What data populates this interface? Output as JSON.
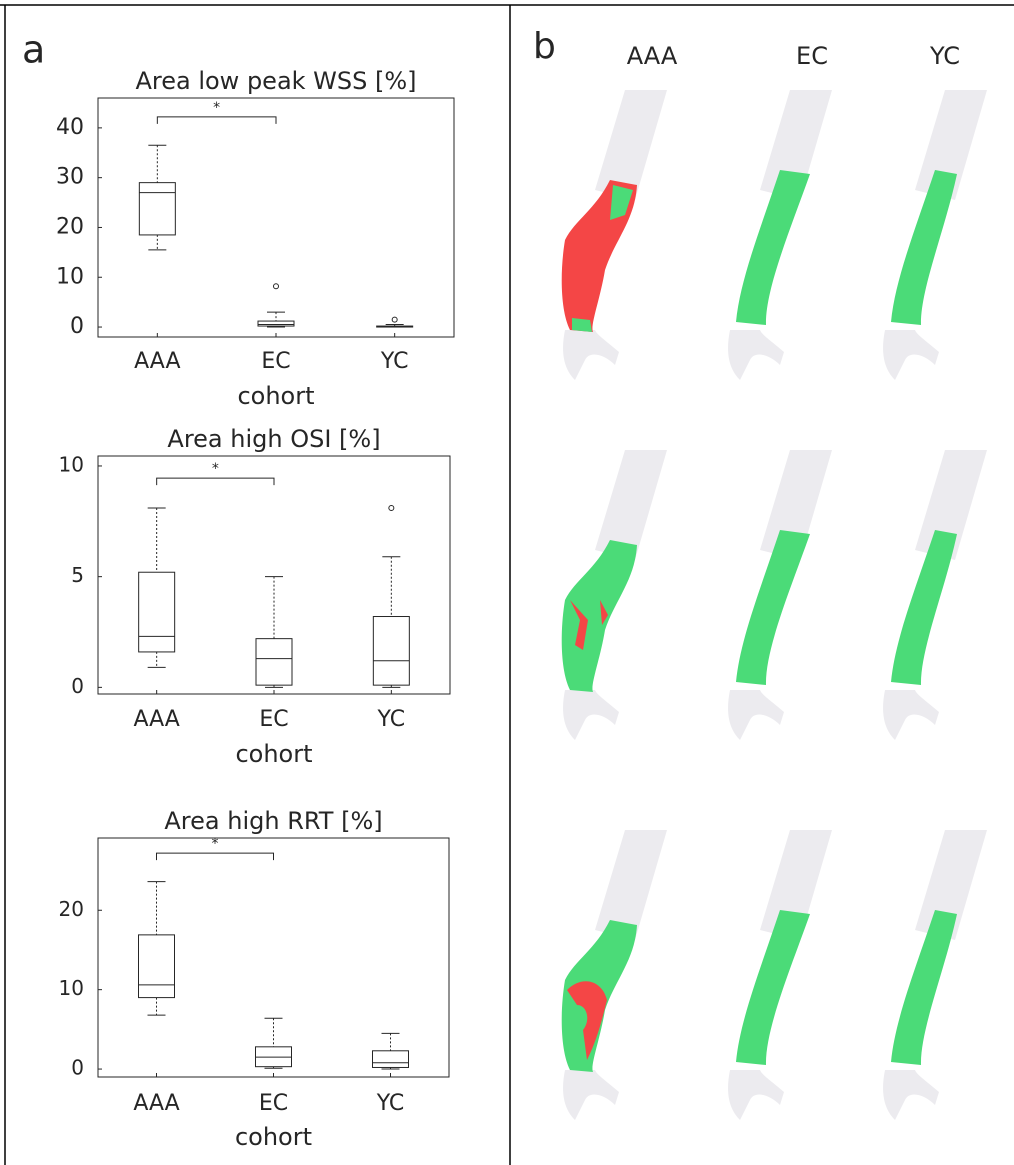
{
  "panel_labels": {
    "a": "a",
    "b": "b"
  },
  "image_columns": [
    "AAA",
    "EC",
    "YC"
  ],
  "chart_data": [
    {
      "type": "box",
      "title": "Area low peak WSS [%]",
      "x_label": "cohort",
      "categories": [
        "AAA",
        "EC",
        "YC"
      ],
      "boxes": [
        {
          "min": 15.5,
          "q1": 18.5,
          "median": 27,
          "q3": 29,
          "max": 36.5,
          "outliers": []
        },
        {
          "min": 0,
          "q1": 0.2,
          "median": 0.5,
          "q3": 1.2,
          "max": 3,
          "outliers": [
            8.2
          ]
        },
        {
          "min": 0,
          "q1": 0,
          "median": 0.1,
          "q3": 0.2,
          "max": 0.5,
          "outliers": [
            1.5
          ]
        }
      ],
      "ylim": [
        -2,
        46
      ],
      "yticks": [
        0,
        10,
        20,
        30,
        40
      ],
      "significance": {
        "between": [
          "AAA",
          "EC"
        ],
        "y": 42.2,
        "label": "*"
      }
    },
    {
      "type": "box",
      "title": "Area high OSI [%]",
      "x_label": "cohort",
      "categories": [
        "AAA",
        "EC",
        "YC"
      ],
      "boxes": [
        {
          "min": 0.9,
          "q1": 1.6,
          "median": 2.3,
          "q3": 5.2,
          "max": 8.1,
          "outliers": []
        },
        {
          "min": 0,
          "q1": 0.1,
          "median": 1.3,
          "q3": 2.2,
          "max": 5.0,
          "outliers": []
        },
        {
          "min": 0,
          "q1": 0.1,
          "median": 1.2,
          "q3": 3.2,
          "max": 5.9,
          "outliers": [
            8.1
          ]
        }
      ],
      "ylim": [
        -0.3,
        10.45
      ],
      "yticks": [
        0,
        5,
        10
      ],
      "significance": {
        "between": [
          "AAA",
          "EC"
        ],
        "y": 9.45,
        "label": "*"
      }
    },
    {
      "type": "box",
      "title": "Area high RRT [%]",
      "x_label": "cohort",
      "categories": [
        "AAA",
        "EC",
        "YC"
      ],
      "boxes": [
        {
          "min": 6.8,
          "q1": 9,
          "median": 10.6,
          "q3": 16.9,
          "max": 23.6,
          "outliers": []
        },
        {
          "min": 0.1,
          "q1": 0.3,
          "median": 1.5,
          "q3": 2.8,
          "max": 6.4,
          "outliers": []
        },
        {
          "min": 0,
          "q1": 0.2,
          "median": 0.8,
          "q3": 2.3,
          "max": 4.5,
          "outliers": []
        }
      ],
      "ylim": [
        -1,
        29.1
      ],
      "yticks": [
        0,
        10,
        20
      ],
      "significance": {
        "between": [
          "AAA",
          "EC"
        ],
        "y": 27.2,
        "label": "*"
      }
    }
  ]
}
